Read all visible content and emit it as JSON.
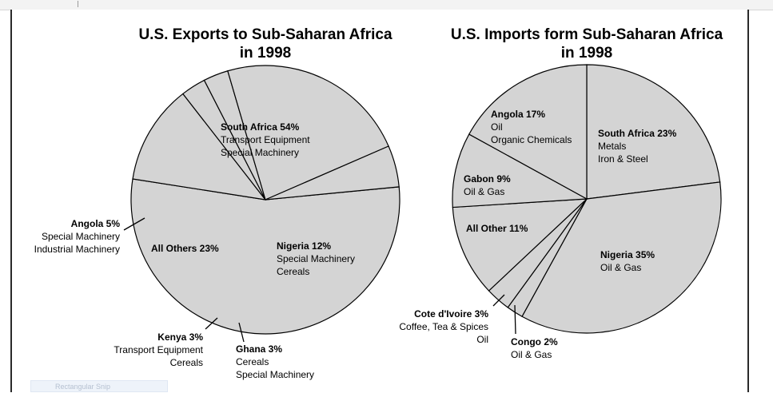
{
  "chart_data": [
    {
      "type": "pie",
      "title": "U.S. Exports to Sub-Saharan Africa",
      "subtitle": "in 1998",
      "slices": [
        {
          "label": "South Africa",
          "value": 54,
          "pct_text": "54%",
          "details": [
            "Transport Equipment",
            "Special Machinery"
          ]
        },
        {
          "label": "Nigeria",
          "value": 12,
          "pct_text": "12%",
          "details": [
            "Special Machinery",
            "Cereals"
          ]
        },
        {
          "label": "Ghana",
          "value": 3,
          "pct_text": "3%",
          "details": [
            "Cereals",
            "Special Machinery"
          ]
        },
        {
          "label": "Kenya",
          "value": 3,
          "pct_text": "3%",
          "details": [
            "Transport Equipment",
            "Cereals"
          ]
        },
        {
          "label": "All Others",
          "value": 23,
          "pct_text": "23%",
          "details": []
        },
        {
          "label": "Angola",
          "value": 5,
          "pct_text": "5%",
          "details": [
            "Special Machinery",
            "Industrial Machinery"
          ]
        }
      ],
      "fill_color": "#d4d4d4",
      "legend": "none"
    },
    {
      "type": "pie",
      "title": "U.S. Imports form Sub-Saharan Africa",
      "subtitle": "in 1998",
      "slices": [
        {
          "label": "South Africa",
          "value": 23,
          "pct_text": "23%",
          "details": [
            "Metals",
            "Iron & Steel"
          ]
        },
        {
          "label": "Nigeria",
          "value": 35,
          "pct_text": "35%",
          "details": [
            "Oil & Gas"
          ]
        },
        {
          "label": "Congo",
          "value": 2,
          "pct_text": "2%",
          "details": [
            "Oil & Gas"
          ]
        },
        {
          "label": "Cote d'Ivoire",
          "value": 3,
          "pct_text": "3%",
          "details": [
            "Coffee, Tea & Spices",
            "Oil"
          ]
        },
        {
          "label": "All Other",
          "value": 11,
          "pct_text": "11%",
          "details": []
        },
        {
          "label": "Gabon",
          "value": 9,
          "pct_text": "9%",
          "details": [
            "Oil & Gas"
          ]
        },
        {
          "label": "Angola",
          "value": 17,
          "pct_text": "17%",
          "details": [
            "Oil",
            "Organic Chemicals"
          ]
        }
      ],
      "fill_color": "#d4d4d4",
      "legend": "none"
    }
  ],
  "snip_label": "Rectangular Snip"
}
